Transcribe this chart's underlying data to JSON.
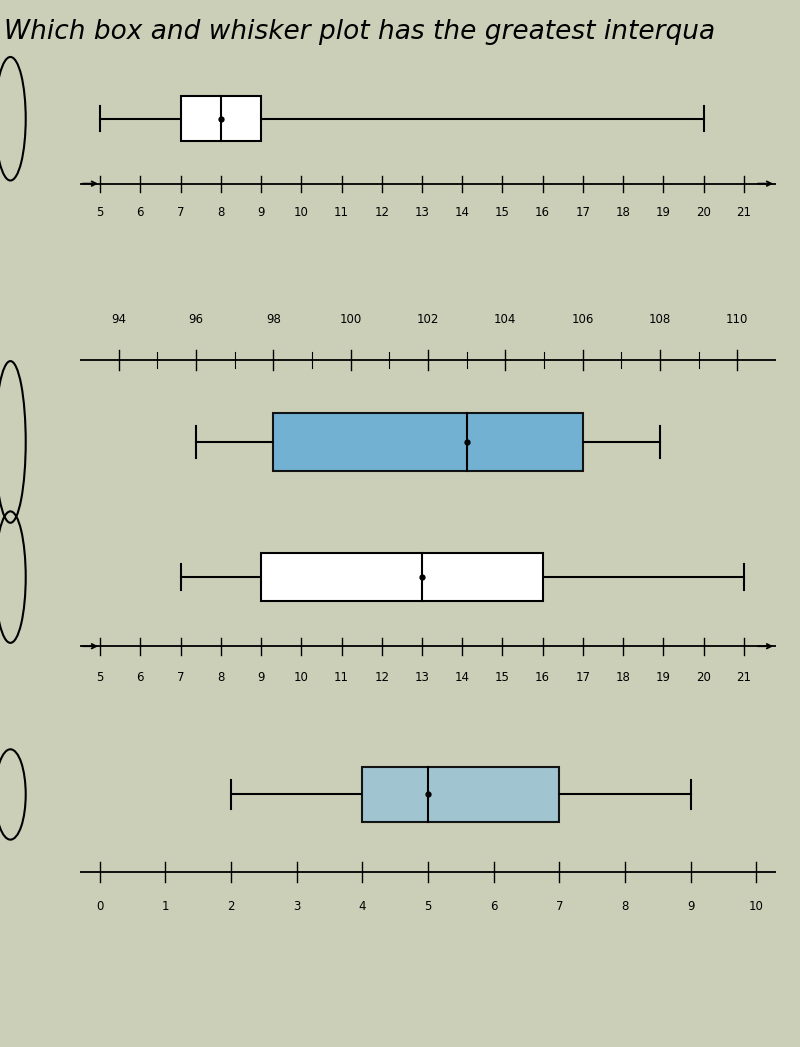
{
  "title": "Which box and whisker plot has the greatest interqua",
  "title_fontsize": 19,
  "background_color": "#cccfb8",
  "plots": [
    {
      "min": 5,
      "q1": 7,
      "median": 8,
      "q3": 9,
      "max": 20,
      "axis_min": 4.5,
      "axis_max": 21.8,
      "axis_ticks": [
        5,
        6,
        7,
        8,
        9,
        10,
        11,
        12,
        13,
        14,
        15,
        16,
        17,
        18,
        19,
        20,
        21
      ],
      "color": "white",
      "has_arrow_left": true,
      "has_arrow_right": true,
      "axis_above": false,
      "label_108_as_100": false
    },
    {
      "min": 96,
      "q1": 98,
      "median": 103,
      "q3": 106,
      "max": 108,
      "axis_min": 93,
      "axis_max": 111,
      "axis_ticks": [
        94,
        96,
        98,
        100,
        102,
        104,
        106,
        108,
        110
      ],
      "color": "#6aaed6",
      "has_arrow_left": false,
      "has_arrow_right": false,
      "axis_above": true,
      "label_108_as_100": true
    },
    {
      "min": 7,
      "q1": 9,
      "median": 13,
      "q3": 16,
      "max": 21,
      "axis_min": 4.5,
      "axis_max": 21.8,
      "axis_ticks": [
        5,
        6,
        7,
        8,
        9,
        10,
        11,
        12,
        13,
        14,
        15,
        16,
        17,
        18,
        19,
        20,
        21
      ],
      "color": "white",
      "has_arrow_left": true,
      "has_arrow_right": true,
      "axis_above": false,
      "label_108_as_100": false
    },
    {
      "min": 2,
      "q1": 4,
      "median": 5,
      "q3": 7,
      "max": 9,
      "axis_min": -0.3,
      "axis_max": 10.3,
      "axis_ticks": [
        0,
        1,
        2,
        3,
        4,
        5,
        6,
        7,
        8,
        9,
        10
      ],
      "color": "#9dc3d4",
      "has_arrow_left": false,
      "has_arrow_right": false,
      "axis_above": false,
      "label_108_as_100": false
    }
  ]
}
